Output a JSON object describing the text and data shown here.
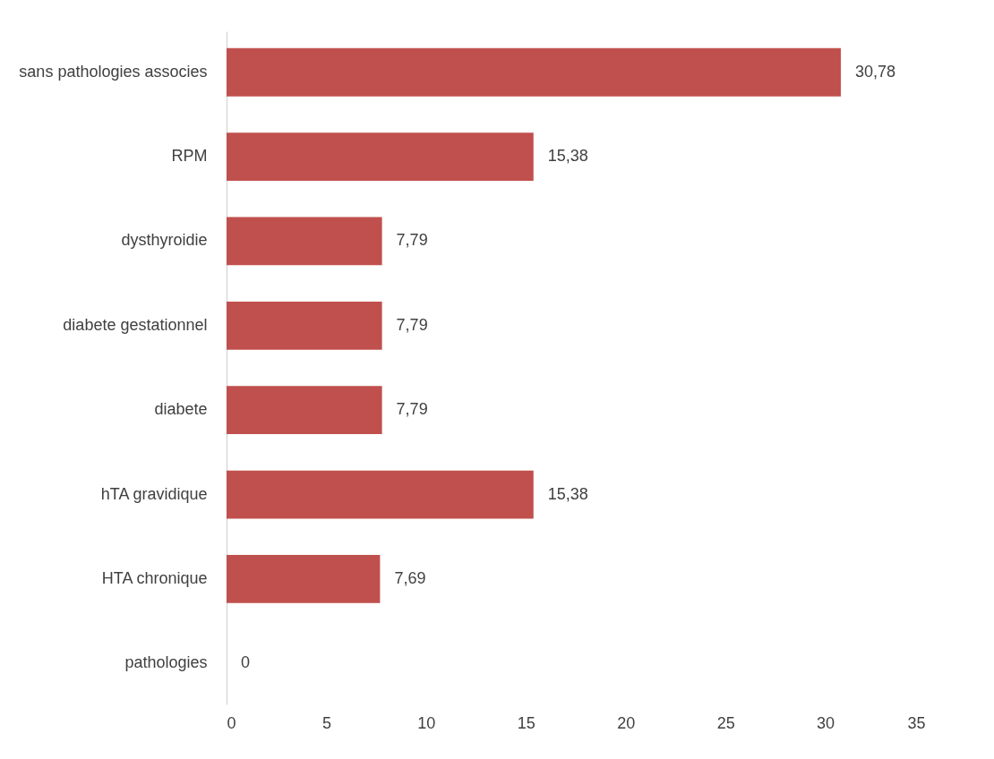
{
  "chart_data": {
    "type": "bar",
    "orientation": "horizontal",
    "categories": [
      "sans pathologies associes",
      "RPM",
      "dysthyroidie",
      "diabete gestationnel",
      "diabete",
      "hTA gravidique",
      "HTA chronique",
      "pathologies"
    ],
    "values": [
      30.78,
      15.38,
      7.79,
      7.79,
      7.79,
      15.38,
      7.69,
      0
    ],
    "value_labels": [
      "30,78",
      "15,38",
      "7,79",
      "7,79",
      "7,79",
      "15,38",
      "7,69",
      "0"
    ],
    "color": "#c0504d",
    "xlim": [
      0,
      35
    ],
    "xticks": [
      0,
      5,
      10,
      15,
      20,
      25,
      30,
      35
    ],
    "grid": false
  }
}
